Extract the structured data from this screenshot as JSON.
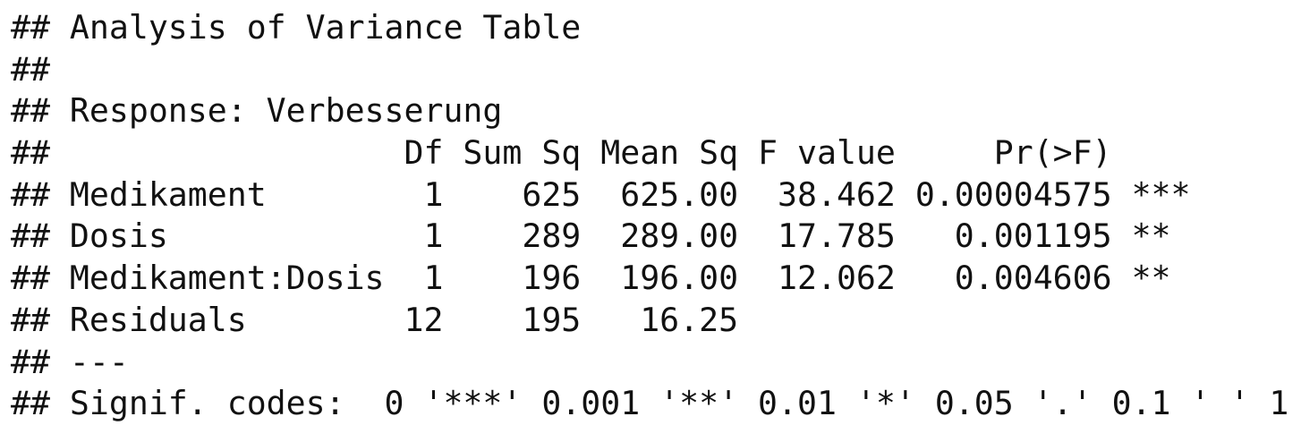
{
  "console": {
    "lines": [
      "## Analysis of Variance Table",
      "##",
      "## Response: Verbesserung",
      "##                  Df Sum Sq Mean Sq F value     Pr(>F)    ",
      "## Medikament        1    625  625.00  38.462 0.00004575 ***",
      "## Dosis             1    289  289.00  17.785   0.001195 ** ",
      "## Medikament:Dosis  1    196  196.00  12.062   0.004606 ** ",
      "## Residuals        12    195   16.25                       ",
      "## ---",
      "## Signif. codes:  0 '***' 0.001 '**' 0.01 '*' 0.05 '.' 0.1 ' ' 1"
    ]
  }
}
